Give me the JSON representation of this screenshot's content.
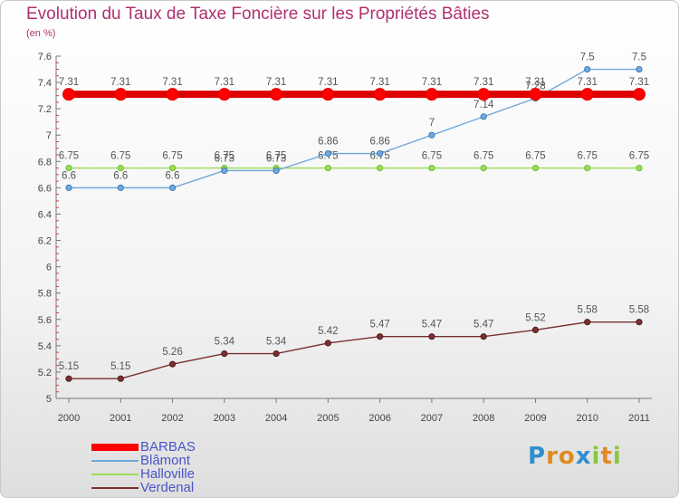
{
  "title": "Evolution du Taux de Taxe Foncière sur les Propriétés Bâties",
  "unit_label": "(en %)",
  "logo": {
    "text": "Proxiti",
    "letters": [
      {
        "ch": "P",
        "color": "#2e8fd0"
      },
      {
        "ch": "r",
        "color": "#e08a1e"
      },
      {
        "ch": "o",
        "color": "#e08a1e"
      },
      {
        "ch": "x",
        "color": "#2e8fd0"
      },
      {
        "ch": "i",
        "color": "#8cc63f"
      },
      {
        "ch": "t",
        "color": "#e08a1e"
      },
      {
        "ch": "i",
        "color": "#8cc63f"
      }
    ]
  },
  "chart_data": {
    "type": "line",
    "title": "Evolution du Taux de Taxe Foncière sur les Propriétés Bâties",
    "ylabel": "(en %)",
    "xlabel": "",
    "x": [
      "2000",
      "2001",
      "2002",
      "2003",
      "2004",
      "2005",
      "2006",
      "2007",
      "2008",
      "2009",
      "2010",
      "2011"
    ],
    "ylim": [
      5,
      7.6
    ],
    "yticks": [
      5,
      5.2,
      5.4,
      5.6,
      5.8,
      6,
      6.2,
      6.4,
      6.6,
      6.8,
      7,
      7.2,
      7.4,
      7.6
    ],
    "ytick_labels": [
      "5",
      "5.2",
      "5.4",
      "5.6",
      "5.8",
      "6",
      "6.2",
      "6.4",
      "6.6",
      "6.8",
      "7",
      "7.2",
      "7.4",
      "7.6"
    ],
    "grid": false,
    "legend_position": "bottom-left",
    "series": [
      {
        "name": "Halloville",
        "color": "#99dd55",
        "stroke_color": "#6ab42a",
        "values": [
          6.75,
          6.75,
          6.75,
          6.75,
          6.75,
          6.75,
          6.75,
          6.75,
          6.75,
          6.75,
          6.75,
          6.75
        ],
        "labels": [
          "6.75",
          "6.75",
          "6.75",
          "6.75",
          "6.75",
          "6.75",
          "6.75",
          "6.75",
          "6.75",
          "6.75",
          "6.75",
          "6.75"
        ]
      },
      {
        "name": "Blâmont",
        "color": "#6fa8dc",
        "stroke_color": "#2e6fb0",
        "values": [
          6.6,
          6.6,
          6.6,
          6.73,
          6.73,
          6.86,
          6.86,
          7,
          7.14,
          7.28,
          7.5,
          7.5
        ],
        "labels": [
          "6.6",
          "6.6",
          "6.6",
          "6.73",
          "6.73",
          "6.86",
          "6.86",
          "7",
          "7.14",
          "7.28",
          "7.5",
          "7.5"
        ]
      },
      {
        "name": "Verdenal",
        "color": "#7a3030",
        "stroke_color": "#4a1515",
        "values": [
          5.15,
          5.15,
          5.26,
          5.34,
          5.34,
          5.42,
          5.47,
          5.47,
          5.47,
          5.52,
          5.58,
          5.58
        ],
        "labels": [
          "5.15",
          "5.15",
          "5.26",
          "5.34",
          "5.34",
          "5.42",
          "5.47",
          "5.47",
          "5.47",
          "5.52",
          "5.58",
          "5.58"
        ]
      },
      {
        "name": "BARBAS",
        "color": "#ff0000",
        "stroke_color": "#dd0000",
        "bold": true,
        "values": [
          7.31,
          7.31,
          7.31,
          7.31,
          7.31,
          7.31,
          7.31,
          7.31,
          7.31,
          7.31,
          7.31,
          7.31
        ],
        "labels": [
          "7.31",
          "7.31",
          "7.31",
          "7.31",
          "7.31",
          "7.31",
          "7.31",
          "7.31",
          "7.31",
          "7.31",
          "7.31",
          "7.31"
        ]
      }
    ],
    "legend": [
      "BARBAS",
      "Blâmont",
      "Halloville",
      "Verdenal"
    ]
  }
}
